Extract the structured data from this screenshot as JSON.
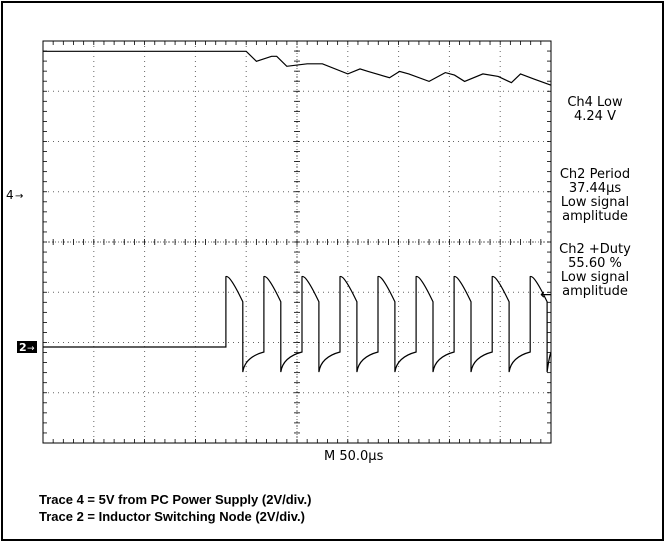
{
  "chart_data": {
    "type": "line",
    "timebase_label": "M 50.0µs",
    "channel_markers": [
      {
        "label": "4",
        "channel": "Ch4"
      },
      {
        "label": "2",
        "channel": "Ch2"
      }
    ],
    "measurements": [
      {
        "name": "Ch4 Low",
        "value": "4.24 V"
      },
      {
        "name": "Ch2 Period",
        "value": "37.44µs",
        "note": "Low signal amplitude"
      },
      {
        "name": "Ch2 +Duty",
        "value": "55.60 %",
        "note": "Low signal amplitude"
      }
    ],
    "xlim": [
      0,
      500
    ],
    "x_unit": "µs",
    "grid": true,
    "series": [
      {
        "name": "Trace 4",
        "channel": 4,
        "x": [
          0,
          200,
          210,
          225,
          230,
          240,
          260,
          275,
          300,
          312,
          320,
          341,
          351,
          360,
          380,
          396,
          405,
          415,
          433,
          448,
          461,
          470,
          483,
          500
        ],
        "y": [
          5.8,
          5.8,
          5.4,
          5.6,
          5.6,
          5.2,
          5.3,
          5.3,
          4.9,
          5.1,
          5.0,
          4.75,
          5.0,
          4.9,
          4.6,
          4.95,
          4.85,
          4.6,
          4.9,
          4.8,
          4.55,
          4.9,
          4.7,
          4.45
        ]
      },
      {
        "name": "Trace 2",
        "channel": 2,
        "period_us": 37.44,
        "duty_percent": 55.6,
        "first_edge_x": 180,
        "high_peak": 2.8,
        "low_min": -1.0
      }
    ],
    "captions": [
      "Trace 4 = 5V from PC Power Supply (2V/div.)",
      "Trace 2 = Inductor Switching Node (2V/div.)"
    ]
  },
  "colors": {
    "trace": "#000000",
    "grid": "#666666",
    "background": "#ffffff"
  }
}
